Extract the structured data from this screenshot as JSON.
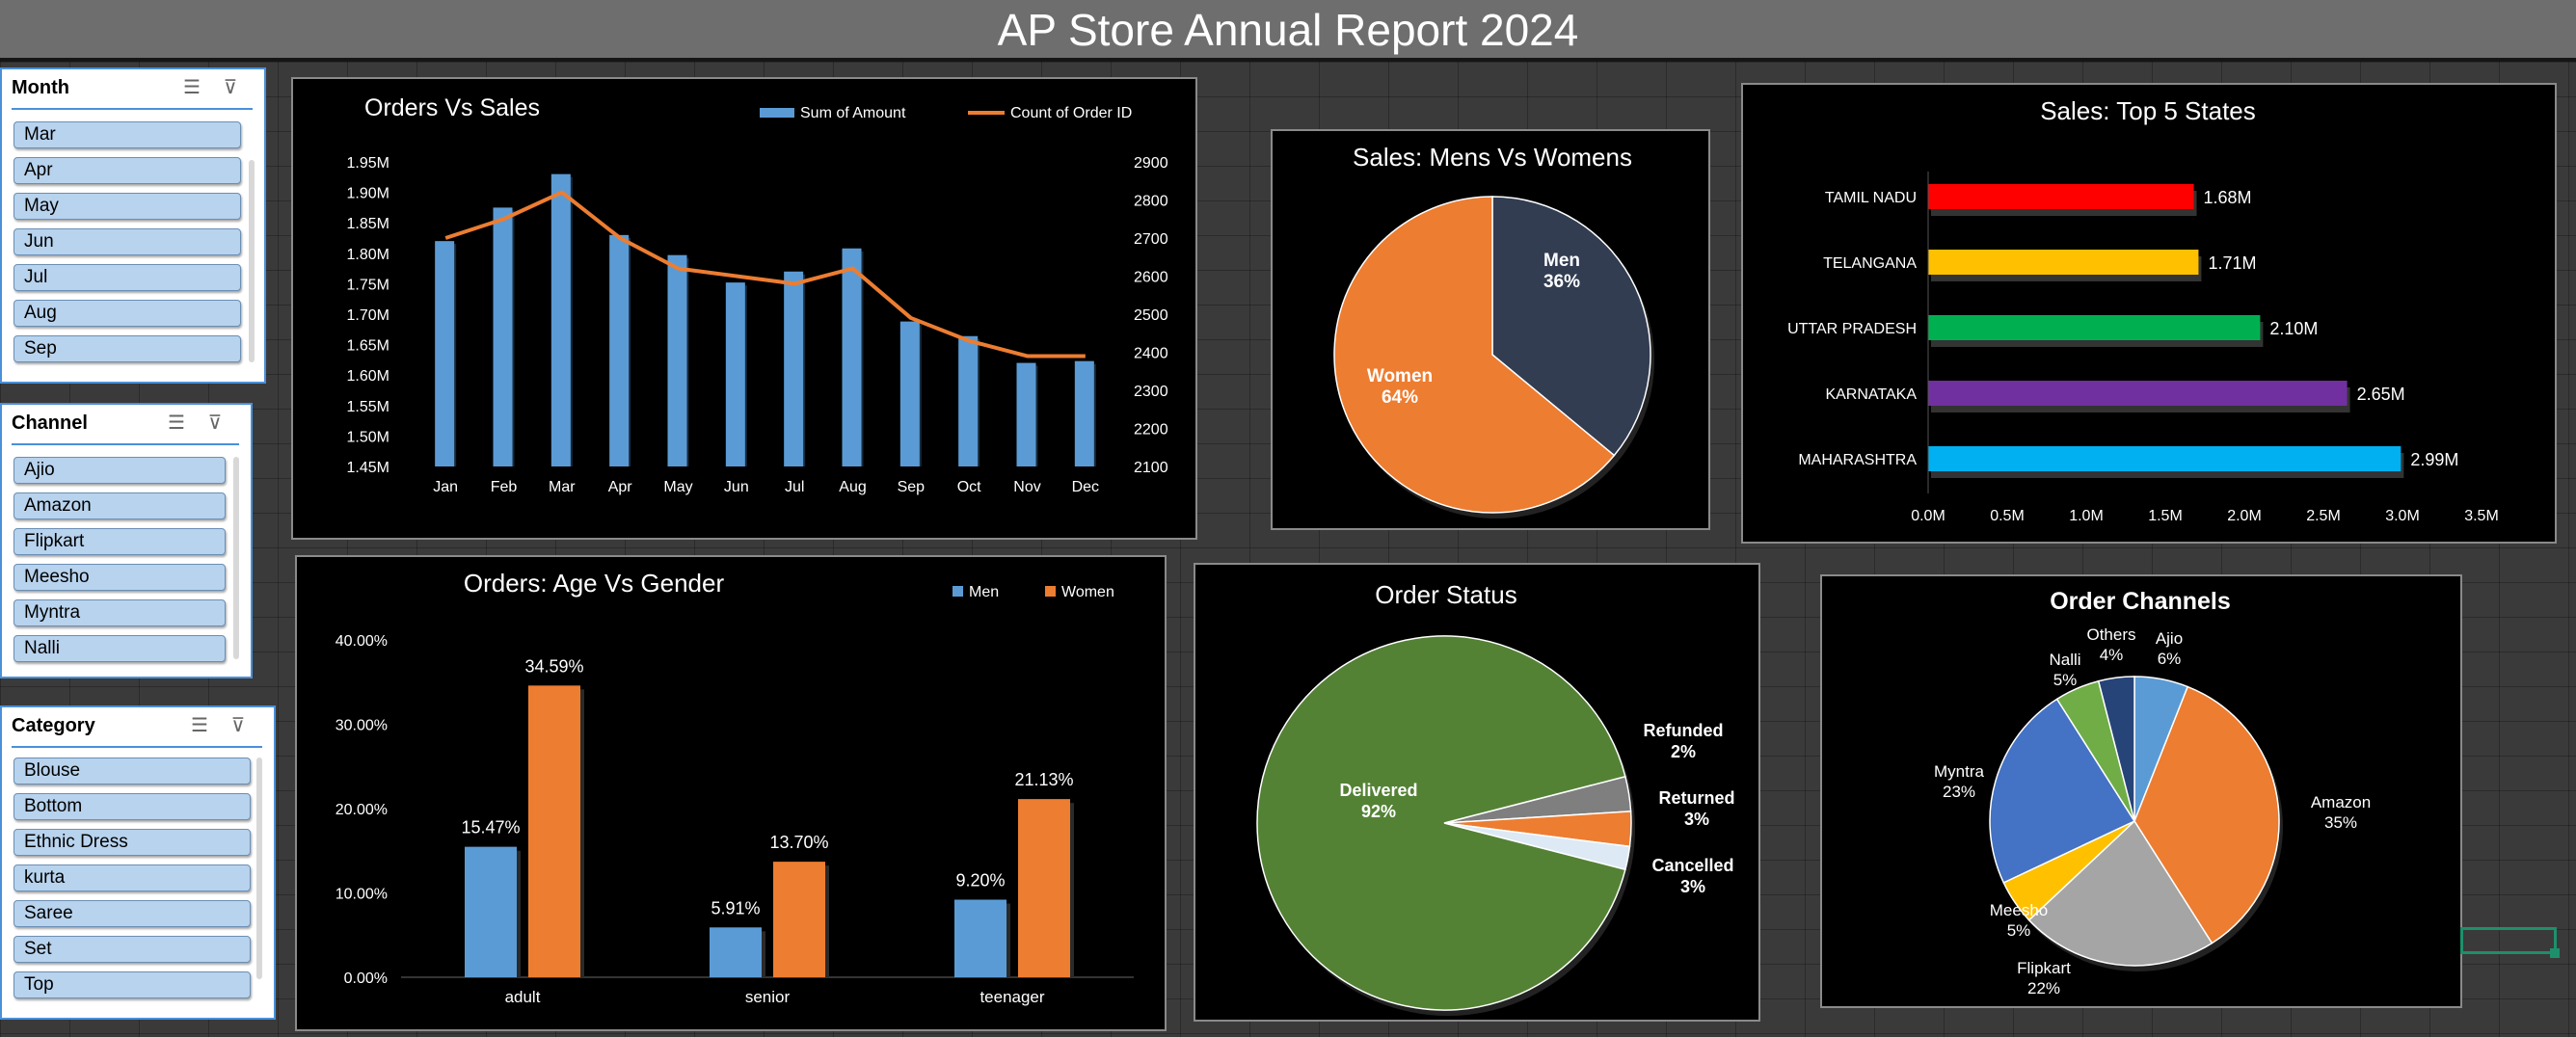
{
  "page": {
    "title": "AP Store Annual Report 2024"
  },
  "slicers": {
    "month": {
      "title": "Month",
      "items": [
        "Mar",
        "Apr",
        "May",
        "Jun",
        "Jul",
        "Aug",
        "Sep"
      ]
    },
    "channel": {
      "title": "Channel",
      "items": [
        "Ajio",
        "Amazon",
        "Flipkart",
        "Meesho",
        "Myntra",
        "Nalli"
      ]
    },
    "category": {
      "title": "Category",
      "items": [
        "Blouse",
        "Bottom",
        "Ethnic Dress",
        "kurta",
        "Saree",
        "Set",
        "Top"
      ]
    }
  },
  "icons": {
    "multi_select": "multi-select-icon",
    "clear_filter": "clear-filter-icon"
  },
  "chart_data": [
    {
      "id": "orders_vs_sales",
      "type": "bar-line-combo",
      "title": "Orders Vs Sales",
      "categories": [
        "Jan",
        "Feb",
        "Mar",
        "Apr",
        "May",
        "Jun",
        "Jul",
        "Aug",
        "Sep",
        "Oct",
        "Nov",
        "Dec"
      ],
      "series": [
        {
          "name": "Sum of Amount",
          "type": "bar",
          "axis": "left",
          "color": "#5b9bd5",
          "values": [
            1820000,
            1875000,
            1930000,
            1830000,
            1797000,
            1752000,
            1770000,
            1808000,
            1688000,
            1664000,
            1620000,
            1623000
          ]
        },
        {
          "name": "Count of Order ID",
          "type": "line",
          "axis": "right",
          "color": "#ed7d31",
          "values": [
            2700,
            2750,
            2820,
            2700,
            2620,
            2600,
            2580,
            2620,
            2490,
            2430,
            2390,
            2390
          ]
        }
      ],
      "left_axis": {
        "min": 1450000,
        "max": 1950000,
        "ticks": [
          "1.95M",
          "1.90M",
          "1.85M",
          "1.80M",
          "1.75M",
          "1.70M",
          "1.65M",
          "1.60M",
          "1.55M",
          "1.50M",
          "1.45M"
        ]
      },
      "right_axis": {
        "min": 2100,
        "max": 2900,
        "ticks": [
          "2900",
          "2800",
          "2700",
          "2600",
          "2500",
          "2400",
          "2300",
          "2200",
          "2100"
        ]
      },
      "legend": "top-right"
    },
    {
      "id": "sales_gender",
      "type": "pie",
      "title": "Sales: Mens Vs Womens",
      "slices": [
        {
          "label": "Men",
          "pct_label": "36%",
          "value": 36,
          "color": "#323d52"
        },
        {
          "label": "Women",
          "pct_label": "64%",
          "value": 64,
          "color": "#ed7d31"
        }
      ]
    },
    {
      "id": "top_states",
      "type": "bar",
      "orientation": "horizontal",
      "title": "Sales: Top 5 States",
      "categories": [
        "TAMIL NADU",
        "TELANGANA",
        "UTTAR PRADESH",
        "KARNATAKA",
        "MAHARASHTRA"
      ],
      "values": [
        1.68,
        1.71,
        2.1,
        2.65,
        2.99
      ],
      "value_labels": [
        "1.68M",
        "1.71M",
        "2.10M",
        "2.65M",
        "2.99M"
      ],
      "colors": [
        "#ff0000",
        "#ffc000",
        "#00b050",
        "#7030a0",
        "#00b0f0"
      ],
      "xlim": [
        0,
        3.5
      ],
      "xticks": [
        "0.0M",
        "0.5M",
        "1.0M",
        "1.5M",
        "2.0M",
        "2.5M",
        "3.0M",
        "3.5M"
      ]
    },
    {
      "id": "age_gender",
      "type": "bar",
      "title": "Orders: Age Vs Gender",
      "categories": [
        "adult",
        "senior",
        "teenager"
      ],
      "series": [
        {
          "name": "Men",
          "color": "#5b9bd5",
          "values": [
            15.47,
            5.91,
            9.2
          ],
          "labels": [
            "15.47%",
            "5.91%",
            "9.20%"
          ]
        },
        {
          "name": "Women",
          "color": "#ed7d31",
          "values": [
            34.59,
            13.7,
            21.13
          ],
          "labels": [
            "34.59%",
            "13.70%",
            "21.13%"
          ]
        }
      ],
      "ylim": [
        0,
        40
      ],
      "yticks": [
        "40.00%",
        "30.00%",
        "20.00%",
        "10.00%",
        "0.00%"
      ],
      "legend": "top-right"
    },
    {
      "id": "order_status",
      "type": "pie",
      "title": "Order Status",
      "slices": [
        {
          "label": "Delivered",
          "pct_label": "92%",
          "value": 92,
          "color": "#548235"
        },
        {
          "label": "Refunded",
          "pct_label": "2%",
          "value": 2,
          "color": "#dde9f5"
        },
        {
          "label": "Returned",
          "pct_label": "3%",
          "value": 3,
          "color": "#ed7d31"
        },
        {
          "label": "Cancelled",
          "pct_label": "3%",
          "value": 3,
          "color": "#7f7f7f"
        }
      ]
    },
    {
      "id": "order_channels",
      "type": "pie",
      "title": "Order Channels",
      "slices": [
        {
          "label": "Ajio",
          "pct_label": "6%",
          "value": 6,
          "color": "#5b9bd5"
        },
        {
          "label": "Amazon",
          "pct_label": "35%",
          "value": 35,
          "color": "#ed7d31"
        },
        {
          "label": "Flipkart",
          "pct_label": "22%",
          "value": 22,
          "color": "#a5a5a5"
        },
        {
          "label": "Meesho",
          "pct_label": "5%",
          "value": 5,
          "color": "#ffc000"
        },
        {
          "label": "Myntra",
          "pct_label": "23%",
          "value": 23,
          "color": "#4472c4"
        },
        {
          "label": "Nalli",
          "pct_label": "5%",
          "value": 5,
          "color": "#70ad47"
        },
        {
          "label": "Others",
          "pct_label": "4%",
          "value": 4,
          "color": "#264478"
        }
      ]
    }
  ]
}
